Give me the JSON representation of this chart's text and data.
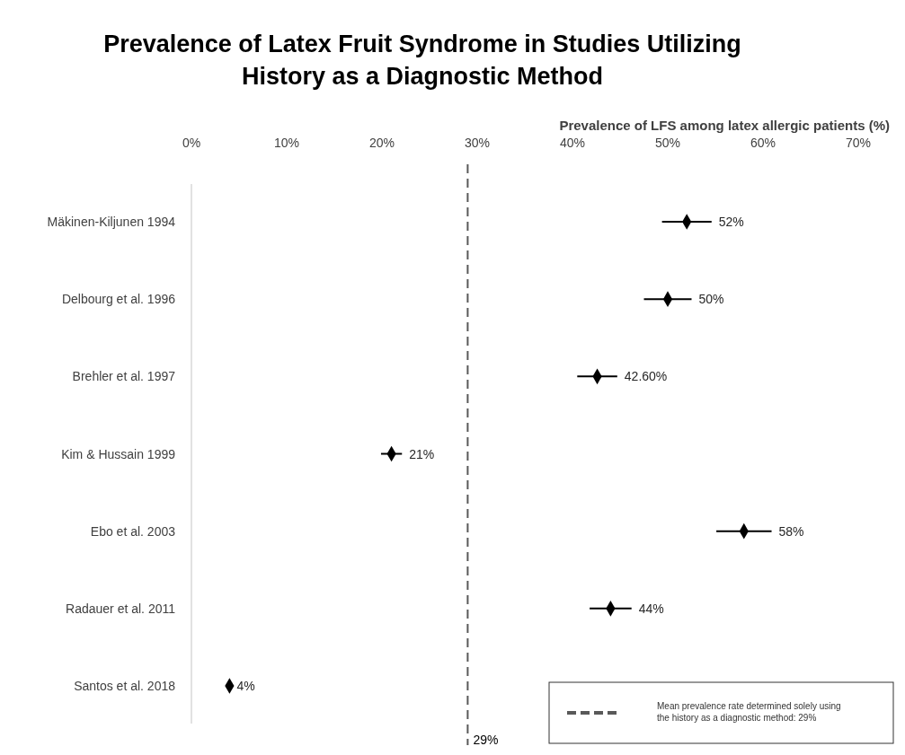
{
  "chart_data": {
    "type": "scatter",
    "title": "Prevalence of Latex Fruit Syndrome in Studies Utilizing History as a Diagnostic Method",
    "xlabel": "Prevalence of LFS among latex allergic patients (%)",
    "orientation": "horizontal",
    "categories": [
      "Mäkinen-Kiljunen 1994",
      "Delbourg et al. 1996",
      "Brehler et al. 1997",
      "Kim & Hussain 1999",
      "Ebo et al. 2003",
      "Radauer et al. 2011",
      "Santos et al. 2018"
    ],
    "values": [
      52,
      50,
      42.6,
      21,
      58,
      44,
      4
    ],
    "errors": [
      2.6,
      2.5,
      2.1,
      1.1,
      2.9,
      2.2,
      null
    ],
    "value_labels": [
      "52%",
      "50%",
      "42.60%",
      "21%",
      "58%",
      "44%",
      "4%"
    ],
    "color": "#000000",
    "marker": "diamond",
    "xlim": [
      0,
      70
    ],
    "xticks": [
      {
        "value": 0,
        "label": "0%"
      },
      {
        "value": 10,
        "label": "10%"
      },
      {
        "value": 20,
        "label": "20%"
      },
      {
        "value": 30,
        "label": "30%"
      },
      {
        "value": 40,
        "label": "40%"
      },
      {
        "value": 50,
        "label": "50%"
      },
      {
        "value": 60,
        "label": "60%"
      },
      {
        "value": 70,
        "label": "70%"
      }
    ],
    "ref_lines": [
      {
        "axis": "x",
        "value": 29,
        "label": "Mean prevalence rate determined solely using the history as a diagnostic method: 29%",
        "color": "#595959",
        "line_style": "dashed"
      }
    ],
    "annotations": [
      {
        "text": "29%",
        "x": 29
      }
    ],
    "legend": "bottom right",
    "grid": false
  }
}
